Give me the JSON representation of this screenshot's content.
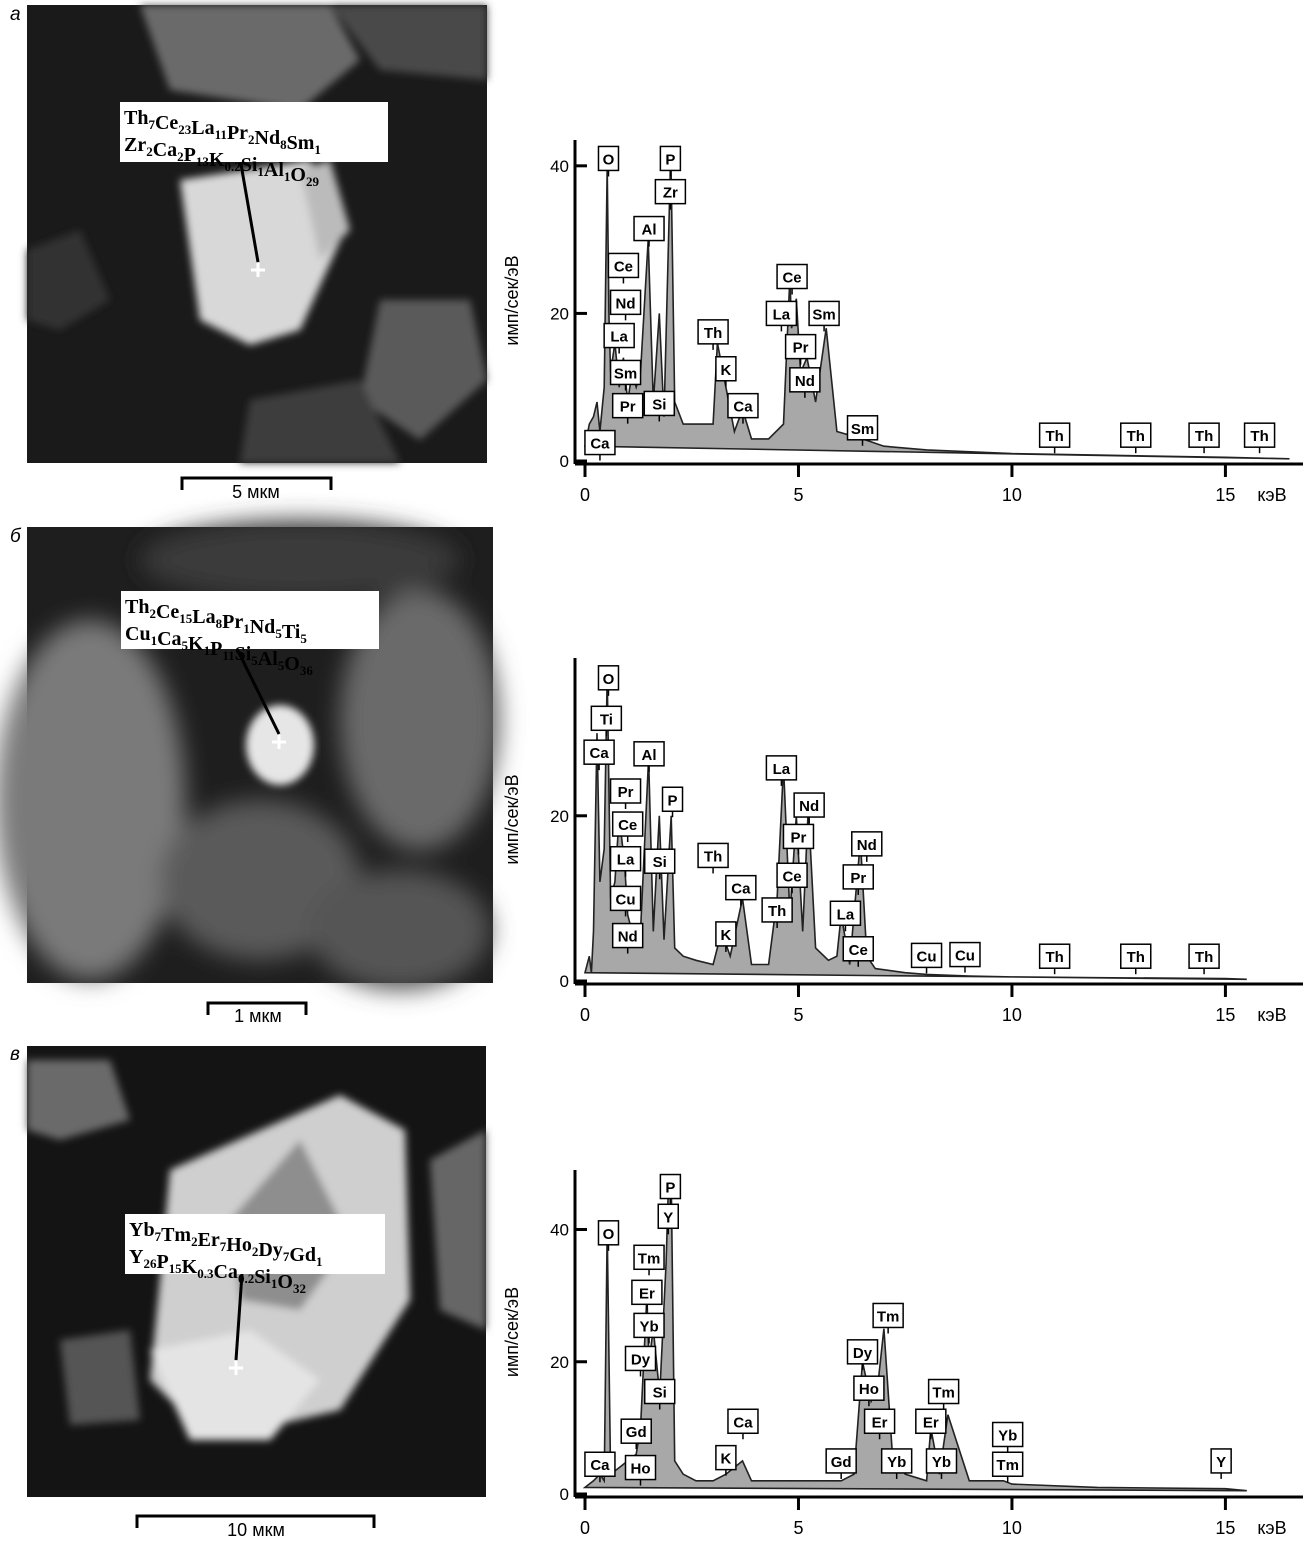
{
  "panels": [
    {
      "label": "а",
      "formula": [
        [
          [
            "Th",
            "7"
          ],
          [
            "Ce",
            "23"
          ],
          [
            "La",
            "11"
          ],
          [
            "Pr",
            "2"
          ],
          [
            "Nd",
            "8"
          ],
          [
            "Sm",
            "1"
          ]
        ],
        [
          [
            "Zr",
            "2"
          ],
          [
            "Ca",
            "2"
          ],
          [
            "P",
            "13"
          ],
          [
            "K",
            "0.2"
          ],
          [
            "Si",
            "1"
          ],
          [
            "Al",
            "1"
          ],
          [
            "O",
            "29"
          ]
        ]
      ],
      "scale_bar": "5 мкм"
    },
    {
      "label": "б",
      "formula": [
        [
          [
            "Th",
            "2"
          ],
          [
            "Ce",
            "15"
          ],
          [
            "La",
            "8"
          ],
          [
            "Pr",
            "1"
          ],
          [
            "Nd",
            "5"
          ],
          [
            "Ti",
            "5"
          ]
        ],
        [
          [
            "Cu",
            "1"
          ],
          [
            "Ca",
            "5"
          ],
          [
            "K",
            "1"
          ],
          [
            "P",
            "11"
          ],
          [
            "Si",
            "5"
          ],
          [
            "Al",
            "5"
          ],
          [
            "O",
            "36"
          ]
        ]
      ],
      "scale_bar": "1 мкм"
    },
    {
      "label": "в",
      "formula": [
        [
          [
            "Yb",
            "7"
          ],
          [
            "Tm",
            "2"
          ],
          [
            "Er",
            "7"
          ],
          [
            "Ho",
            "2"
          ],
          [
            "Dy",
            "7"
          ],
          [
            "Gd",
            "1"
          ]
        ],
        [
          [
            "Y",
            "26"
          ],
          [
            "P",
            "15"
          ],
          [
            "K",
            "0.3"
          ],
          [
            "Ca",
            "0.2"
          ],
          [
            "Si",
            "1"
          ],
          [
            "O",
            "32"
          ]
        ]
      ],
      "scale_bar": "10 мкм"
    }
  ],
  "chart_data": [
    {
      "type": "area",
      "y_label": "имп/сек/эВ",
      "x_unit": "кэВ",
      "color": "#a8a8a8",
      "xlim": [
        0,
        16.7
      ],
      "ylim": [
        0,
        43.5
      ],
      "xticks": [
        0,
        5,
        10,
        15
      ],
      "yticks": [
        0,
        20,
        40
      ],
      "x": [
        0,
        0.1,
        0.2,
        0.28,
        0.35,
        0.45,
        0.52,
        0.56,
        0.6,
        0.7,
        0.8,
        0.9,
        1.0,
        1.1,
        1.2,
        1.3,
        1.48,
        1.6,
        1.74,
        1.85,
        2.01,
        2.1,
        2.3,
        2.6,
        3.0,
        3.1,
        3.3,
        3.5,
        3.69,
        3.9,
        4.3,
        4.65,
        4.8,
        4.84,
        4.95,
        5.05,
        5.2,
        5.4,
        5.65,
        5.9,
        6.5,
        7,
        8,
        10,
        12,
        15,
        16.5
      ],
      "values": [
        2,
        5,
        6,
        8,
        4,
        10,
        40,
        20,
        12,
        16,
        10,
        14,
        8,
        12,
        10,
        12,
        30,
        8,
        20,
        6,
        42,
        8,
        5,
        5,
        5,
        16,
        10,
        4,
        7,
        3,
        3,
        5,
        25,
        18,
        22,
        12,
        14,
        8,
        18,
        4,
        3,
        2,
        1.5,
        1,
        0.8,
        0.5,
        0.3
      ],
      "annotations": [
        {
          "text": "O",
          "x": 0.55,
          "y": 41
        },
        {
          "text": "P",
          "x": 2.0,
          "y": 41
        },
        {
          "text": "Zr",
          "x": 2.0,
          "y": 36.5
        },
        {
          "text": "Al",
          "x": 1.5,
          "y": 31.5
        },
        {
          "text": "Ce",
          "x": 0.9,
          "y": 26.5
        },
        {
          "text": "Nd",
          "x": 0.95,
          "y": 21.5
        },
        {
          "text": "La",
          "x": 0.8,
          "y": 17
        },
        {
          "text": "Sm",
          "x": 0.95,
          "y": 12
        },
        {
          "text": "Pr",
          "x": 1.0,
          "y": 7.5
        },
        {
          "text": "Si",
          "x": 1.74,
          "y": 7.8
        },
        {
          "text": "Ca",
          "x": 0.35,
          "y": 2.5
        },
        {
          "text": "Th",
          "x": 3.0,
          "y": 17.5
        },
        {
          "text": "K",
          "x": 3.3,
          "y": 12.5
        },
        {
          "text": "Ca",
          "x": 3.7,
          "y": 7.5
        },
        {
          "text": "Ce",
          "x": 4.85,
          "y": 25
        },
        {
          "text": "La",
          "x": 4.6,
          "y": 20
        },
        {
          "text": "Sm",
          "x": 5.6,
          "y": 20
        },
        {
          "text": "Pr",
          "x": 5.05,
          "y": 15.5
        },
        {
          "text": "Nd",
          "x": 5.15,
          "y": 11
        },
        {
          "text": "Sm",
          "x": 6.5,
          "y": 4.5
        },
        {
          "text": "Th",
          "x": 11.0,
          "y": 3.5
        },
        {
          "text": "Th",
          "x": 12.9,
          "y": 3.5
        },
        {
          "text": "Th",
          "x": 14.5,
          "y": 3.5
        },
        {
          "text": "Th",
          "x": 15.8,
          "y": 3.5
        }
      ]
    },
    {
      "type": "area",
      "y_label": "имп/сек/эВ",
      "x_unit": "кэВ",
      "color": "#a8a8a8",
      "xlim": [
        0,
        16.7
      ],
      "ylim": [
        0,
        39.1
      ],
      "xticks": [
        0,
        5,
        10,
        15
      ],
      "yticks": [
        0,
        20
      ],
      "x": [
        0,
        0.1,
        0.15,
        0.2,
        0.28,
        0.35,
        0.45,
        0.52,
        0.6,
        0.7,
        0.8,
        0.93,
        1.0,
        1.1,
        1.2,
        1.3,
        1.49,
        1.6,
        1.74,
        1.85,
        2.02,
        2.1,
        2.3,
        2.6,
        3.0,
        3.2,
        3.4,
        3.69,
        3.9,
        4.3,
        4.5,
        4.65,
        4.8,
        4.95,
        5.1,
        5.23,
        5.4,
        5.7,
        5.9,
        6.0,
        6.2,
        6.45,
        6.6,
        6.8,
        7.5,
        8.0,
        9,
        10,
        12,
        15,
        15.5
      ],
      "values": [
        1,
        3,
        1,
        6,
        30,
        12,
        16,
        37,
        10,
        12,
        20,
        14,
        8,
        6,
        5,
        6,
        27,
        6,
        20,
        5,
        20,
        4,
        3,
        2.5,
        2,
        6,
        3,
        10,
        2,
        2,
        10,
        26,
        8,
        20,
        6,
        21,
        4,
        2.5,
        3,
        8,
        2,
        17,
        3,
        1.5,
        1,
        0.8,
        0.6,
        0.5,
        0.4,
        0.3,
        0.2
      ],
      "annotations": [
        {
          "text": "O",
          "x": 0.55,
          "y": 36.7
        },
        {
          "text": "Ti",
          "x": 0.5,
          "y": 31.8
        },
        {
          "text": "Ca",
          "x": 0.33,
          "y": 27.7
        },
        {
          "text": "Al",
          "x": 1.5,
          "y": 27.5
        },
        {
          "text": "Pr",
          "x": 0.95,
          "y": 23
        },
        {
          "text": "P",
          "x": 2.05,
          "y": 22
        },
        {
          "text": "Ce",
          "x": 1.0,
          "y": 19
        },
        {
          "text": "La",
          "x": 0.95,
          "y": 14.8
        },
        {
          "text": "Cu",
          "x": 0.95,
          "y": 10
        },
        {
          "text": "Nd",
          "x": 1.0,
          "y": 5.5
        },
        {
          "text": "Si",
          "x": 1.75,
          "y": 14.5
        },
        {
          "text": "Th",
          "x": 3.0,
          "y": 15.2
        },
        {
          "text": "Ca",
          "x": 3.65,
          "y": 11.3
        },
        {
          "text": "K",
          "x": 3.3,
          "y": 5.7
        },
        {
          "text": "La",
          "x": 4.6,
          "y": 25.8
        },
        {
          "text": "Nd",
          "x": 5.25,
          "y": 21.3
        },
        {
          "text": "Pr",
          "x": 5.0,
          "y": 17.5
        },
        {
          "text": "Ce",
          "x": 4.85,
          "y": 12.8
        },
        {
          "text": "Th",
          "x": 4.5,
          "y": 8.6
        },
        {
          "text": "Nd",
          "x": 6.6,
          "y": 16.6
        },
        {
          "text": "Pr",
          "x": 6.4,
          "y": 12.6
        },
        {
          "text": "La",
          "x": 6.1,
          "y": 8.2
        },
        {
          "text": "Ce",
          "x": 6.4,
          "y": 3.9
        },
        {
          "text": "Cu",
          "x": 8.0,
          "y": 3.1
        },
        {
          "text": "Cu",
          "x": 8.9,
          "y": 3.2
        },
        {
          "text": "Th",
          "x": 11.0,
          "y": 3.0
        },
        {
          "text": "Th",
          "x": 12.9,
          "y": 3.0
        },
        {
          "text": "Th",
          "x": 14.5,
          "y": 3.0
        }
      ]
    },
    {
      "type": "area",
      "y_label": "имп/сек/эВ",
      "x_unit": "кэВ",
      "color": "#a8a8a8",
      "xlim": [
        0,
        16.7
      ],
      "ylim": [
        0,
        49
      ],
      "xticks": [
        0,
        5,
        10,
        15
      ],
      "yticks": [
        0,
        20,
        40
      ],
      "x": [
        0,
        0.2,
        0.35,
        0.45,
        0.52,
        0.6,
        0.8,
        1.0,
        1.2,
        1.3,
        1.45,
        1.5,
        1.6,
        1.75,
        1.9,
        1.95,
        2.02,
        2.1,
        2.3,
        2.6,
        3.0,
        3.3,
        3.69,
        3.9,
        4.5,
        5.5,
        6.0,
        6.3,
        6.5,
        6.7,
        6.85,
        7.0,
        7.2,
        7.5,
        8.0,
        8.1,
        8.3,
        8.5,
        9.0,
        9.8,
        10,
        12,
        15,
        15.5
      ],
      "values": [
        1,
        2,
        3,
        2,
        40,
        3,
        4,
        5,
        6,
        10,
        30,
        20,
        25,
        15,
        35,
        46,
        48,
        5,
        3,
        2,
        2,
        3,
        5,
        2,
        2,
        2,
        2,
        3,
        20,
        14,
        16,
        25,
        6,
        3,
        2,
        10,
        3,
        12,
        2,
        2,
        1.5,
        1,
        0.8,
        0.5
      ],
      "annotations": [
        {
          "text": "P",
          "x": 2.0,
          "y": 46.5
        },
        {
          "text": "Y",
          "x": 1.95,
          "y": 42
        },
        {
          "text": "O",
          "x": 0.55,
          "y": 39.5
        },
        {
          "text": "Tm",
          "x": 1.5,
          "y": 35.8
        },
        {
          "text": "Er",
          "x": 1.45,
          "y": 30.5
        },
        {
          "text": "Yb",
          "x": 1.5,
          "y": 25.5
        },
        {
          "text": "Dy",
          "x": 1.3,
          "y": 20.5
        },
        {
          "text": "Si",
          "x": 1.75,
          "y": 15.5
        },
        {
          "text": "Gd",
          "x": 1.2,
          "y": 9.5
        },
        {
          "text": "Ho",
          "x": 1.3,
          "y": 4
        },
        {
          "text": "Ca",
          "x": 0.35,
          "y": 4.5
        },
        {
          "text": "K",
          "x": 3.3,
          "y": 5.5
        },
        {
          "text": "Ca",
          "x": 3.7,
          "y": 11
        },
        {
          "text": "Gd",
          "x": 6.0,
          "y": 5
        },
        {
          "text": "Dy",
          "x": 6.5,
          "y": 21.5
        },
        {
          "text": "Tm",
          "x": 7.1,
          "y": 27
        },
        {
          "text": "Ho",
          "x": 6.65,
          "y": 16
        },
        {
          "text": "Er",
          "x": 6.9,
          "y": 11
        },
        {
          "text": "Yb",
          "x": 7.3,
          "y": 5
        },
        {
          "text": "Tm",
          "x": 8.4,
          "y": 15.5
        },
        {
          "text": "Er",
          "x": 8.1,
          "y": 11
        },
        {
          "text": "Yb",
          "x": 8.35,
          "y": 5
        },
        {
          "text": "Yb",
          "x": 9.9,
          "y": 9
        },
        {
          "text": "Tm",
          "x": 9.9,
          "y": 4.5
        },
        {
          "text": "Y",
          "x": 14.9,
          "y": 5
        }
      ]
    }
  ]
}
